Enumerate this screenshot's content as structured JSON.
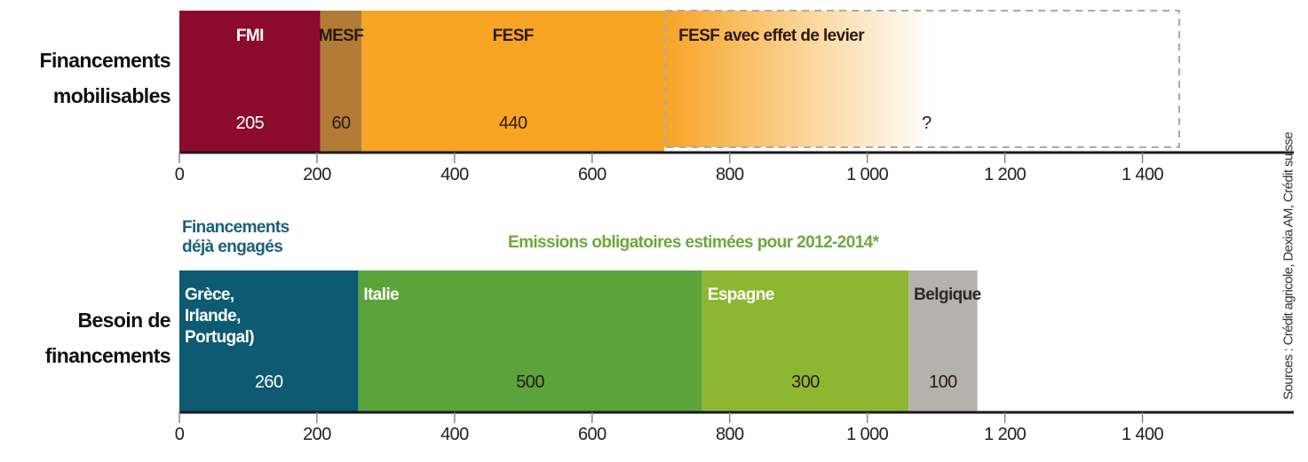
{
  "source": "Sources : Crédit agricole, Dexia AM, Crédit suisse",
  "chart_data": [
    {
      "type": "stacked_bar",
      "orientation": "horizontal",
      "row_label": "Financements mobilisables",
      "series": [
        {
          "name": "FMI",
          "color": "#8c0a2c",
          "text_color": "#ffffff",
          "values": [
            205
          ]
        },
        {
          "name": "MESF",
          "color": "#b27c36",
          "text_color": "#2a1a10",
          "values": [
            60
          ]
        },
        {
          "name": "FESF",
          "color": "#f7a425",
          "text_color": "#2a1a10",
          "values": [
            440
          ]
        },
        {
          "name": "FESF avec effet de levier",
          "color": "#f7a425",
          "text_color": "#2a1a10",
          "values": [
            null
          ],
          "value_labels": [
            "?"
          ]
        }
      ],
      "xlim": [
        0,
        1620
      ],
      "xticks": [
        0,
        200,
        400,
        600,
        800,
        {
          "value": 1000,
          "label": "1 000"
        },
        {
          "value": 1200,
          "label": "1 200"
        },
        {
          "value": 1400,
          "label": "1 400"
        }
      ]
    },
    {
      "type": "stacked_bar",
      "orientation": "horizontal",
      "row_label": "Besoin de financements",
      "annotations": [
        {
          "text": "Financements déjà engagés",
          "color": "#1b5f7b"
        },
        {
          "text": "Emissions obligatoires estimées pour 2012-2014*",
          "color": "#6aaa3a"
        }
      ],
      "series": [
        {
          "name": "Grèce, Irlande, Portugal)",
          "color": "#0e5a72",
          "text_color": "#ffffff",
          "values": [
            260
          ]
        },
        {
          "name": "Italie",
          "color": "#5ba43b",
          "text_color": "#ffffff",
          "values": [
            500
          ]
        },
        {
          "name": "Espagne",
          "color": "#8db733",
          "text_color": "#ffffff",
          "values": [
            300
          ]
        },
        {
          "name": "Belgique",
          "color": "#b5b1ab",
          "text_color": "#2a2a2a",
          "values": [
            100
          ]
        }
      ],
      "xlim": [
        0,
        1620
      ],
      "xticks": [
        0,
        200,
        400,
        600,
        800,
        {
          "value": 1000,
          "label": "1 000"
        },
        {
          "value": 1200,
          "label": "1 200"
        },
        {
          "value": 1400,
          "label": "1 400"
        }
      ]
    }
  ]
}
